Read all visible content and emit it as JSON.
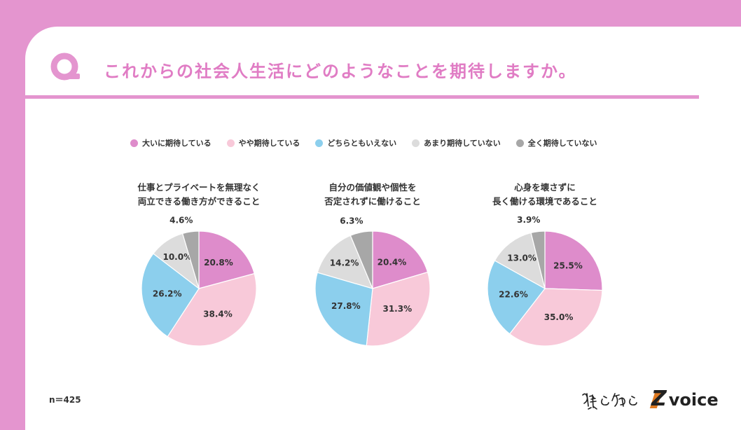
{
  "title": "これからの社会人生活にどのようなことを期待しますか。",
  "colors": {
    "frame": "#e495cf",
    "title": "#e07cc4",
    "text": "#333333"
  },
  "legend": [
    {
      "label": "大いに期待している",
      "color": "#de8ccb"
    },
    {
      "label": "やや期待している",
      "color": "#f8c9d9"
    },
    {
      "label": "どちらともいえない",
      "color": "#8ccfed"
    },
    {
      "label": "あまり期待していない",
      "color": "#dcdcdc"
    },
    {
      "label": "全く期待していない",
      "color": "#a7a7a7"
    }
  ],
  "chart_data": [
    {
      "type": "pie",
      "title_lines": [
        "仕事とプライベートを無理なく",
        "両立できる働き方ができること"
      ],
      "categories": [
        "大いに期待している",
        "やや期待している",
        "どちらともいえない",
        "あまり期待していない",
        "全く期待していない"
      ],
      "values": [
        20.8,
        38.4,
        26.2,
        10.0,
        4.6
      ],
      "labels": [
        "20.8%",
        "38.4%",
        "26.2%",
        "10.0%",
        "4.6%"
      ]
    },
    {
      "type": "pie",
      "title_lines": [
        "自分の価値観や個性を",
        "否定されずに働けること"
      ],
      "categories": [
        "大いに期待している",
        "やや期待している",
        "どちらともいえない",
        "あまり期待していない",
        "全く期待していない"
      ],
      "values": [
        20.4,
        31.3,
        27.8,
        14.2,
        6.3
      ],
      "labels": [
        "20.4%",
        "31.3%",
        "27.8%",
        "14.2%",
        "6.3%"
      ]
    },
    {
      "type": "pie",
      "title_lines": [
        "心身を壊さずに",
        "長く働ける環境であること"
      ],
      "categories": [
        "大いに期待している",
        "やや期待している",
        "どちらともいえない",
        "あまり期待していない",
        "全く期待していない"
      ],
      "values": [
        25.5,
        35.0,
        22.6,
        13.0,
        3.9
      ],
      "labels": [
        "25.5%",
        "35.0%",
        "22.6%",
        "13.0%",
        "3.9%"
      ]
    }
  ],
  "footer": {
    "n": "n＝425",
    "brand": "voice",
    "brand_mark": "Z",
    "signature_text": "僕と私と"
  }
}
